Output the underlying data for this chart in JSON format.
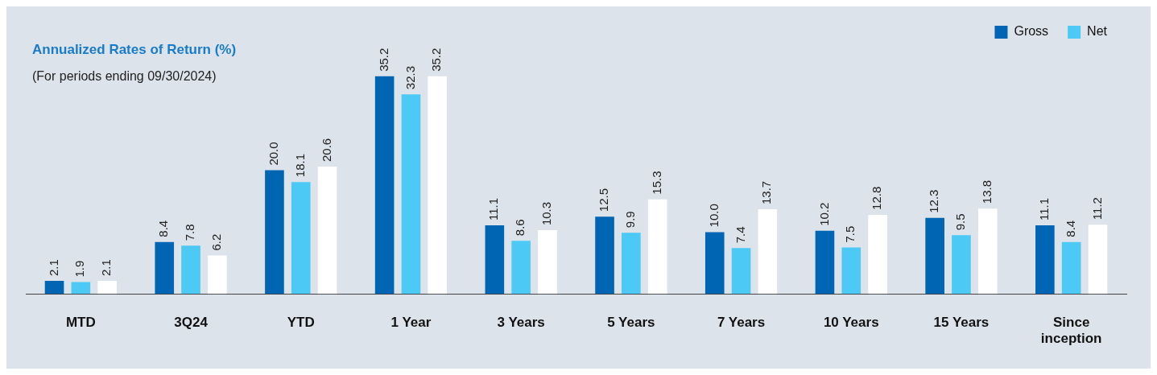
{
  "chart_data": {
    "type": "bar",
    "title": "Annualized Rates of Return (%)",
    "subtitle": "(For periods ending 09/30/2024)",
    "categories": [
      "MTD",
      "3Q24",
      "YTD",
      "1 Year",
      "3 Years",
      "5 Years",
      "7 Years",
      "10 Years",
      "15 Years",
      "Since inception"
    ],
    "series": [
      {
        "name": "Gross",
        "color": "#0066b3",
        "values": [
          2.1,
          8.4,
          20.0,
          35.2,
          11.1,
          12.5,
          10.0,
          10.2,
          12.3,
          11.1
        ],
        "value_labels": [
          "2.1",
          "8.4",
          "20.0",
          "35.2",
          "11.1",
          "12.5",
          "10.0",
          "10.2",
          "12.3",
          "11.1"
        ]
      },
      {
        "name": "Net",
        "color": "#4dc9f5",
        "values": [
          1.9,
          7.8,
          18.1,
          32.3,
          8.6,
          9.9,
          7.4,
          7.5,
          9.5,
          8.4
        ],
        "value_labels": [
          "1.9",
          "7.8",
          "18.1",
          "32.3",
          "8.6",
          "9.9",
          "7.4",
          "7.5",
          "9.5",
          "8.4"
        ]
      },
      {
        "color": "#ffffff",
        "values": [
          2.1,
          6.2,
          20.6,
          35.2,
          10.3,
          15.3,
          13.7,
          12.8,
          13.8,
          11.2
        ],
        "value_labels": [
          "2.1",
          "6.2",
          "20.6",
          "35.2",
          "10.3",
          "15.3",
          "13.7",
          "12.8",
          "13.8",
          "11.2"
        ]
      }
    ],
    "legend": "top right",
    "grid": false
  }
}
